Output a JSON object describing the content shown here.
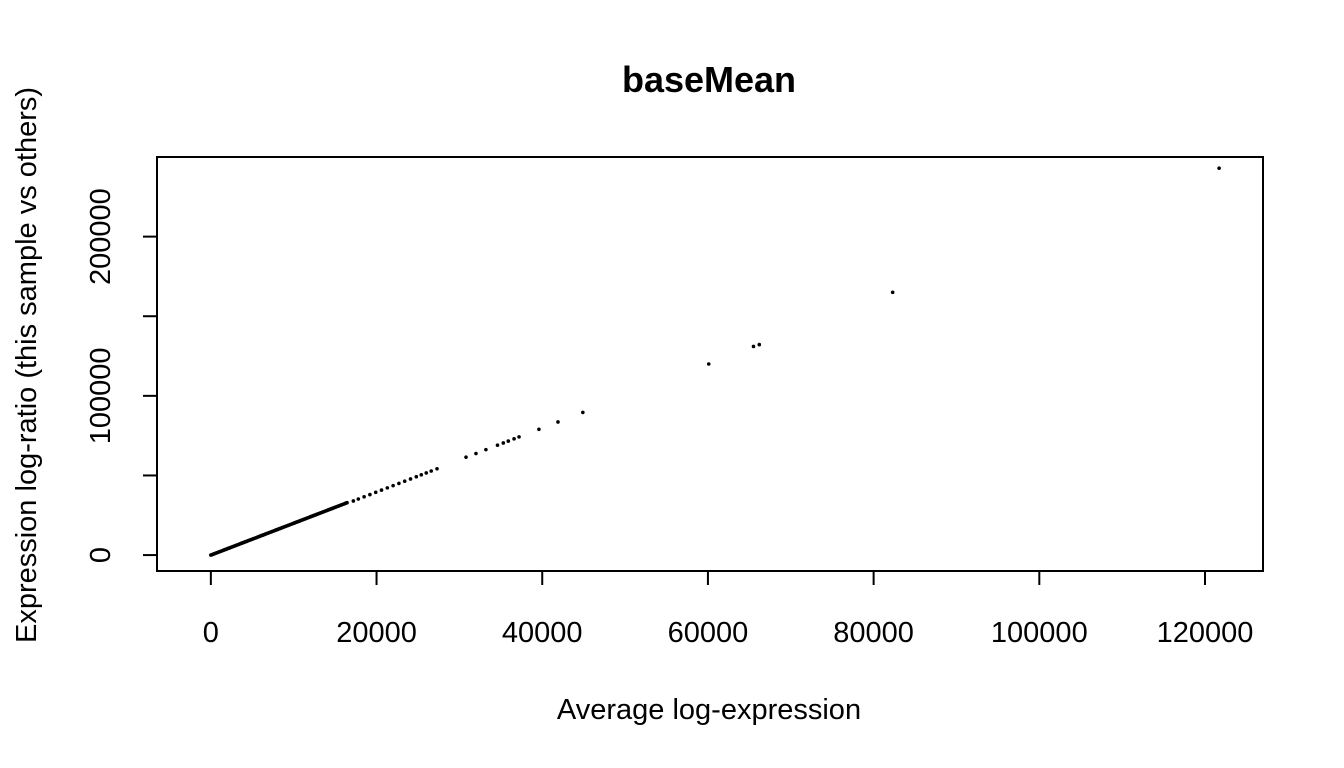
{
  "chart_data": {
    "type": "scatter",
    "title": "baseMean",
    "xlabel": "Average log-expression",
    "ylabel": "Expression log-ratio (this sample vs others)",
    "xlim": [
      -6500,
      127000
    ],
    "ylim": [
      -10000,
      250000
    ],
    "x_ticks": [
      0,
      20000,
      40000,
      60000,
      80000,
      100000,
      120000
    ],
    "x_tick_labels": [
      "0",
      "20000",
      "40000",
      "60000",
      "80000",
      "100000",
      "120000"
    ],
    "y_ticks": [
      0,
      50000,
      100000,
      150000,
      200000
    ],
    "y_tick_labels": [
      "0",
      "",
      "100000",
      "",
      "200000"
    ],
    "grid": false,
    "legend": "none",
    "point_color": "#000000",
    "dense_segment": {
      "x_start": 0,
      "x_end": 16500,
      "slope": 2
    },
    "points": [
      {
        "x": 17200,
        "y": 34000
      },
      {
        "x": 17800,
        "y": 35200
      },
      {
        "x": 18500,
        "y": 36600
      },
      {
        "x": 19200,
        "y": 38000
      },
      {
        "x": 19900,
        "y": 39400
      },
      {
        "x": 20600,
        "y": 40800
      },
      {
        "x": 21300,
        "y": 42200
      },
      {
        "x": 22000,
        "y": 43600
      },
      {
        "x": 22700,
        "y": 45000
      },
      {
        "x": 23400,
        "y": 46400
      },
      {
        "x": 24100,
        "y": 47800
      },
      {
        "x": 24800,
        "y": 49200
      },
      {
        "x": 25400,
        "y": 50400
      },
      {
        "x": 26000,
        "y": 51600
      },
      {
        "x": 26600,
        "y": 52800
      },
      {
        "x": 27300,
        "y": 54200
      },
      {
        "x": 30800,
        "y": 61500
      },
      {
        "x": 32000,
        "y": 63800
      },
      {
        "x": 33200,
        "y": 66200
      },
      {
        "x": 34600,
        "y": 69000
      },
      {
        "x": 35300,
        "y": 70400
      },
      {
        "x": 35900,
        "y": 71600
      },
      {
        "x": 36600,
        "y": 73000
      },
      {
        "x": 37200,
        "y": 74200
      },
      {
        "x": 39600,
        "y": 79000
      },
      {
        "x": 41900,
        "y": 83600
      },
      {
        "x": 44900,
        "y": 89600
      },
      {
        "x": 60100,
        "y": 120000
      },
      {
        "x": 65500,
        "y": 131000
      },
      {
        "x": 66200,
        "y": 132200
      },
      {
        "x": 82300,
        "y": 165000
      },
      {
        "x": 121700,
        "y": 243000
      }
    ]
  }
}
